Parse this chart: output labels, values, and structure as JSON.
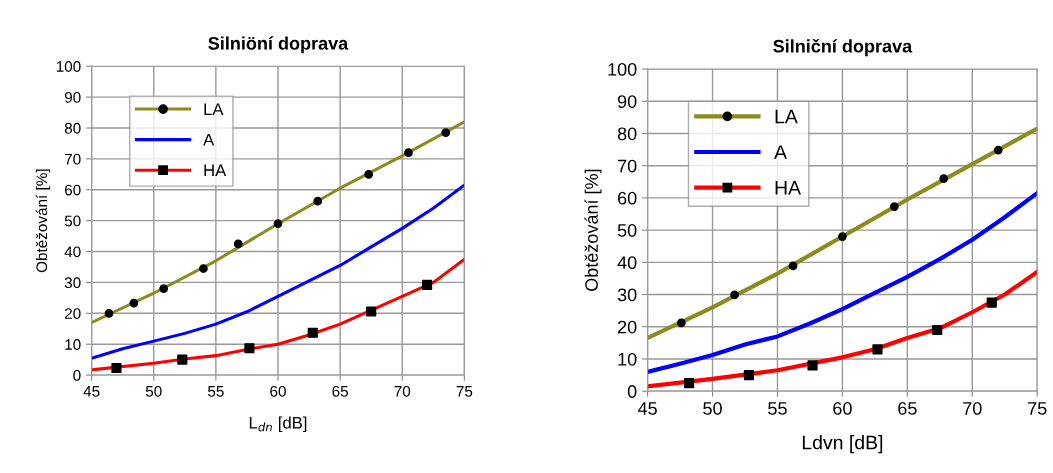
{
  "chart_data": [
    {
      "type": "line",
      "title": "Silniöní doprava",
      "xlabel": "L$_{dn}$ [dB]",
      "ylabel": "Obtěžování [%]",
      "xlim": [
        45,
        75
      ],
      "xticks": [
        45,
        50,
        55,
        60,
        65,
        70,
        75
      ],
      "ylim": [
        0,
        100
      ],
      "yticks": [
        0,
        10,
        20,
        30,
        40,
        50,
        60,
        70,
        80,
        90,
        100
      ],
      "grid": true,
      "legend": "top left",
      "series": [
        {
          "name": "LA",
          "color": "#8c8c1e",
          "x": [
            45,
            50,
            55,
            60,
            65,
            70,
            75
          ],
          "values": [
            17,
            26.5,
            37,
            49,
            60.5,
            71,
            82
          ]
        },
        {
          "type": "scatter",
          "color": "#000000",
          "marker": "circle",
          "x": [
            46.4,
            48.4,
            50.8,
            54,
            56.8,
            60,
            63.2,
            67.3,
            70.5,
            73.5
          ],
          "values": [
            20,
            23.3,
            28,
            34.5,
            42.5,
            49,
            56.3,
            65,
            72,
            78.5
          ]
        },
        {
          "name": "A",
          "color": "#0000ff",
          "x": [
            45,
            47.5,
            50,
            52.5,
            55,
            57.5,
            60,
            62.5,
            65,
            67.5,
            70,
            72.5,
            75
          ],
          "values": [
            5.5,
            8.5,
            11,
            13.5,
            16.5,
            20.5,
            25.5,
            30.5,
            35.5,
            41.5,
            47.5,
            54,
            61.5
          ]
        },
        {
          "name": "HA",
          "color": "#ff0000",
          "x": [
            45,
            50,
            52.5,
            55,
            57.5,
            60,
            62.5,
            65,
            70,
            72.5,
            75
          ],
          "values": [
            1.7,
            3.8,
            5.2,
            6.3,
            8.3,
            10,
            13,
            16.5,
            25.5,
            30,
            37.5
          ]
        },
        {
          "type": "scatter",
          "color": "#000000",
          "marker": "square",
          "x": [
            47,
            52.3,
            57.7,
            62.8,
            67.5,
            72
          ],
          "values": [
            2.3,
            5,
            8.7,
            13.7,
            20.6,
            29.2
          ]
        }
      ]
    },
    {
      "type": "line",
      "title": "Silniční doprava",
      "xlabel": "Ldvn [dB]",
      "ylabel": "Obtěžování [%]",
      "xlim": [
        45,
        75
      ],
      "xticks": [
        45,
        50,
        55,
        60,
        65,
        70,
        75
      ],
      "ylim": [
        0,
        100
      ],
      "yticks": [
        0,
        10,
        20,
        30,
        40,
        50,
        60,
        70,
        80,
        90,
        100
      ],
      "grid": true,
      "legend": "top left",
      "series": [
        {
          "name": "LA",
          "color": "#8c8c1e",
          "x": [
            45,
            50,
            55,
            60,
            65,
            70,
            75
          ],
          "values": [
            16.5,
            26,
            36.5,
            48,
            59.5,
            70.5,
            81.5
          ]
        },
        {
          "type": "scatter",
          "color": "#000000",
          "marker": "circle",
          "x": [
            47.6,
            51.7,
            56.2,
            60,
            64,
            67.8,
            72
          ],
          "values": [
            21.2,
            29.9,
            38.9,
            48,
            57.3,
            66,
            74.8
          ]
        },
        {
          "name": "A",
          "color": "#0000ff",
          "x": [
            45,
            47.5,
            50,
            52.5,
            55,
            57.5,
            60,
            62.5,
            65,
            67.5,
            70,
            72.5,
            75
          ],
          "values": [
            6,
            8.5,
            11.2,
            14.5,
            17,
            21,
            25.5,
            30.5,
            35.5,
            41,
            47,
            54,
            61.5
          ]
        },
        {
          "name": "HA",
          "color": "#ff0000",
          "x": [
            45,
            50,
            55,
            60,
            62.5,
            65,
            67.5,
            70,
            72.5,
            75
          ],
          "values": [
            1.5,
            3.8,
            6.5,
            10.5,
            13,
            16.5,
            19.5,
            24.5,
            30,
            37
          ]
        },
        {
          "type": "scatter",
          "color": "#000000",
          "marker": "square",
          "x": [
            48.2,
            52.8,
            57.7,
            62.7,
            67.3,
            71.5
          ],
          "values": [
            2.5,
            5,
            8,
            13,
            19,
            27.5
          ]
        }
      ]
    }
  ]
}
